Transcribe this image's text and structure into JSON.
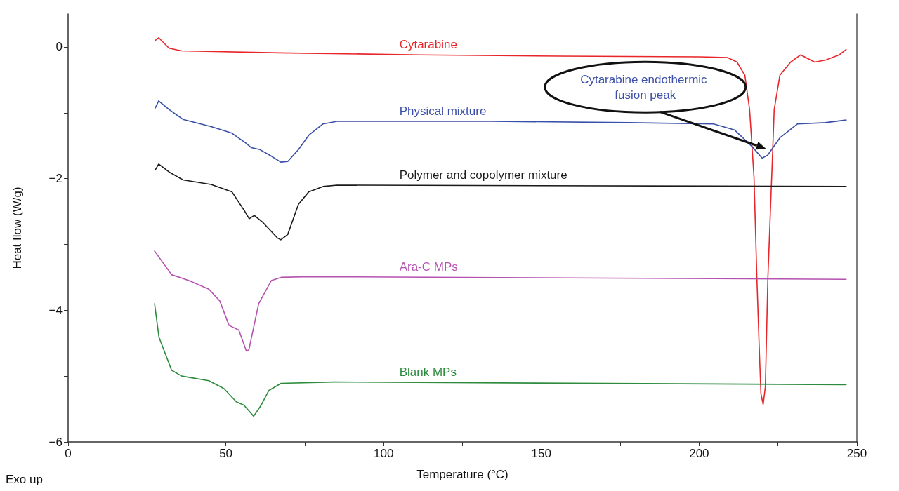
{
  "chart_data": {
    "type": "line",
    "xlabel": "Temperature (°C)",
    "ylabel": "Heat flow (W/g)",
    "xlim": [
      0,
      250
    ],
    "xticks": [
      0,
      {
        "value": 25,
        "label": null
      },
      50,
      {
        "value": 75,
        "label": null
      },
      100,
      {
        "value": 125,
        "label": null
      },
      150,
      {
        "value": 175,
        "label": null
      },
      200,
      {
        "value": 225,
        "label": null
      },
      250
    ],
    "ylim": [
      -6,
      0.5
    ],
    "yticks": [
      {
        "value": -6,
        "label": "−6"
      },
      {
        "value": -5,
        "label": null
      },
      {
        "value": -4,
        "label": "−4"
      },
      {
        "value": -3,
        "label": null
      },
      {
        "value": -2,
        "label": "−2"
      },
      {
        "value": -1,
        "label": null
      },
      0
    ],
    "grid": false,
    "legend": false,
    "marker": "none",
    "line_style": "solid",
    "annotations": [
      "Cytarabine endothermic fusion peak",
      "Exo up"
    ],
    "series": [
      {
        "name": "Cytarabine",
        "color": "#e8262a",
        "x": [
          27.6,
          28.7,
          32,
          36,
          67,
          111.6,
          156,
          200,
          209,
          212,
          214.5,
          216,
          217.4,
          218.3,
          219,
          219.6,
          220.3,
          221,
          221.8,
          223,
          223.8,
          225.6,
          229,
          232.2,
          236.6,
          240,
          244.4,
          246.6
        ],
        "values": [
          0.1,
          0.14,
          -0.02,
          -0.06,
          -0.09,
          -0.12,
          -0.14,
          -0.15,
          -0.16,
          -0.23,
          -0.43,
          -0.95,
          -1.98,
          -3.5,
          -4.5,
          -5.27,
          -5.43,
          -5.16,
          -3.5,
          -1.98,
          -0.95,
          -0.43,
          -0.23,
          -0.12,
          -0.23,
          -0.2,
          -0.12,
          -0.04
        ]
      },
      {
        "name": "Physical mixture",
        "color": "#3a4fa8",
        "x": [
          27.6,
          28.7,
          32,
          36.4,
          45.3,
          51.9,
          56.3,
          58.1,
          60.8,
          64.1,
          67.4,
          69.6,
          73,
          76.3,
          80.8,
          85.2,
          133.8,
          178,
          204.6,
          211.2,
          216.7,
          220,
          221.8,
          225.6,
          231.2,
          240,
          246.6
        ],
        "values": [
          -0.93,
          -0.82,
          -0.95,
          -1.1,
          -1.21,
          -1.31,
          -1.46,
          -1.53,
          -1.56,
          -1.65,
          -1.75,
          -1.74,
          -1.56,
          -1.34,
          -1.17,
          -1.13,
          -1.13,
          -1.15,
          -1.17,
          -1.26,
          -1.51,
          -1.69,
          -1.64,
          -1.38,
          -1.17,
          -1.15,
          -1.11
        ]
      },
      {
        "name": "Polymer and copolymer mixture",
        "color": "#1a1a1a",
        "x": [
          27.6,
          28.7,
          32,
          36.4,
          45.3,
          51.9,
          55.9,
          57.4,
          59,
          61.8,
          66.3,
          67.4,
          69.6,
          73,
          76.3,
          80.8,
          85.2,
          246.6
        ],
        "values": [
          -1.87,
          -1.78,
          -1.9,
          -2.02,
          -2.09,
          -2.2,
          -2.49,
          -2.61,
          -2.56,
          -2.67,
          -2.9,
          -2.93,
          -2.85,
          -2.39,
          -2.2,
          -2.12,
          -2.1,
          -2.12
        ]
      },
      {
        "name": "Ara-C MPs",
        "color": "#b552b0",
        "x": [
          27.4,
          32.8,
          38.3,
          44.6,
          48.1,
          51,
          54.1,
          56.5,
          57.3,
          60.4,
          64.4,
          67.5,
          76.2,
          246.6
        ],
        "values": [
          -3.1,
          -3.46,
          -3.55,
          -3.68,
          -3.86,
          -4.23,
          -4.3,
          -4.62,
          -4.6,
          -3.9,
          -3.55,
          -3.5,
          -3.49,
          -3.53
        ]
      },
      {
        "name": "Blank MPs",
        "color": "#2e8b3e",
        "x": [
          27.4,
          28.8,
          32.8,
          36,
          44.6,
          49.4,
          53.3,
          55.7,
          58.8,
          61.2,
          63.6,
          67.5,
          84.1,
          246.6
        ],
        "values": [
          -3.9,
          -4.41,
          -4.91,
          -5,
          -5.07,
          -5.19,
          -5.39,
          -5.44,
          -5.61,
          -5.44,
          -5.22,
          -5.11,
          -5.09,
          -5.13
        ]
      }
    ]
  }
}
